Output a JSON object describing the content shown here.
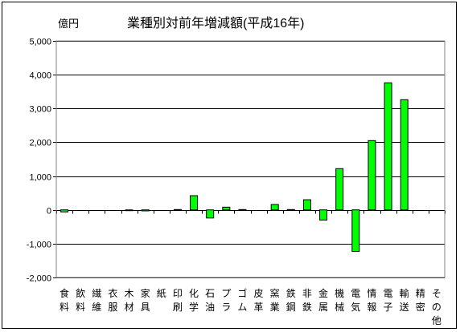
{
  "chart_data": {
    "type": "bar",
    "title": "業種別対前年増減額(平成16年)",
    "unit": "億円",
    "ylim": [
      -2000,
      5000
    ],
    "yticks": [
      5000,
      4000,
      3000,
      2000,
      1000,
      0,
      -1000,
      -2000
    ],
    "ytick_labels": [
      "5,000",
      "4,000",
      "3,000",
      "2,000",
      "1,000",
      "0",
      "-1,000",
      "-2,000"
    ],
    "grid": true,
    "bar_color": "#00ff00",
    "categories": [
      [
        "食",
        "料"
      ],
      [
        "飲",
        "料"
      ],
      [
        "繊",
        "維"
      ],
      [
        "衣",
        "服"
      ],
      [
        "木",
        "材"
      ],
      [
        "家",
        "具"
      ],
      [
        "紙"
      ],
      [
        "印",
        "刷"
      ],
      [
        "化",
        "学"
      ],
      [
        "石",
        "油"
      ],
      [
        "プ",
        "ラ"
      ],
      [
        "ゴ",
        "ム"
      ],
      [
        "皮",
        "革"
      ],
      [
        "窯",
        "業"
      ],
      [
        "鉄",
        "鋼"
      ],
      [
        "非",
        "鉄"
      ],
      [
        "金",
        "属"
      ],
      [
        "機",
        "械"
      ],
      [
        "電",
        "気"
      ],
      [
        "情",
        "報"
      ],
      [
        "電",
        "子"
      ],
      [
        "輸",
        "送"
      ],
      [
        "精",
        "密"
      ],
      [
        "そ",
        "の",
        "他"
      ]
    ],
    "values": [
      -60,
      0,
      0,
      0,
      -20,
      -30,
      0,
      10,
      420,
      -240,
      80,
      10,
      0,
      160,
      10,
      300,
      -300,
      1220,
      -1230,
      2050,
      3760,
      3260,
      0,
      0
    ]
  }
}
